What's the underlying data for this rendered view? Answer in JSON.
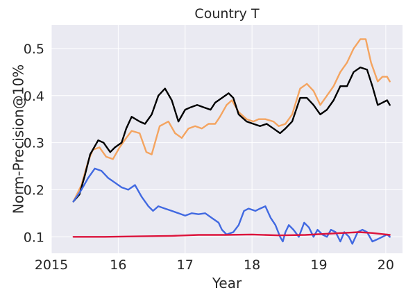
{
  "chart_data": {
    "type": "line",
    "title": "Country T",
    "xlabel": "Year",
    "ylabel": "Norm-Precision@10%",
    "xlim": [
      2015.0,
      2020.25
    ],
    "ylim": [
      0.065,
      0.55
    ],
    "x_ticks": [
      {
        "value": 2015,
        "label": "2015"
      },
      {
        "value": 2016,
        "label": "16"
      },
      {
        "value": 2017,
        "label": "17"
      },
      {
        "value": 2018,
        "label": "18"
      },
      {
        "value": 2019,
        "label": "19"
      },
      {
        "value": 2020,
        "label": "20"
      }
    ],
    "y_ticks": [
      {
        "value": 0.1,
        "label": "0.1"
      },
      {
        "value": 0.2,
        "label": "0.2"
      },
      {
        "value": 0.3,
        "label": "0.3"
      },
      {
        "value": 0.4,
        "label": "0.4"
      },
      {
        "value": 0.5,
        "label": "0.5"
      }
    ],
    "grid": true,
    "background": "#eaeaf2",
    "series": [
      {
        "color": "#f4a460",
        "points": [
          [
            2015.33,
            0.175
          ],
          [
            2015.45,
            0.21
          ],
          [
            2015.55,
            0.26
          ],
          [
            2015.62,
            0.285
          ],
          [
            2015.72,
            0.29
          ],
          [
            2015.82,
            0.27
          ],
          [
            2015.92,
            0.265
          ],
          [
            2016.02,
            0.29
          ],
          [
            2016.12,
            0.31
          ],
          [
            2016.2,
            0.325
          ],
          [
            2016.32,
            0.32
          ],
          [
            2016.42,
            0.28
          ],
          [
            2016.5,
            0.275
          ],
          [
            2016.62,
            0.335
          ],
          [
            2016.75,
            0.345
          ],
          [
            2016.85,
            0.32
          ],
          [
            2016.95,
            0.31
          ],
          [
            2017.05,
            0.33
          ],
          [
            2017.15,
            0.335
          ],
          [
            2017.25,
            0.33
          ],
          [
            2017.35,
            0.34
          ],
          [
            2017.45,
            0.34
          ],
          [
            2017.52,
            0.355
          ],
          [
            2017.62,
            0.38
          ],
          [
            2017.7,
            0.39
          ],
          [
            2017.8,
            0.365
          ],
          [
            2017.92,
            0.35
          ],
          [
            2018.02,
            0.345
          ],
          [
            2018.1,
            0.35
          ],
          [
            2018.2,
            0.35
          ],
          [
            2018.32,
            0.345
          ],
          [
            2018.4,
            0.335
          ],
          [
            2018.5,
            0.34
          ],
          [
            2018.6,
            0.36
          ],
          [
            2018.72,
            0.415
          ],
          [
            2018.82,
            0.425
          ],
          [
            2018.92,
            0.41
          ],
          [
            2019.02,
            0.38
          ],
          [
            2019.12,
            0.4
          ],
          [
            2019.22,
            0.42
          ],
          [
            2019.32,
            0.45
          ],
          [
            2019.42,
            0.47
          ],
          [
            2019.52,
            0.5
          ],
          [
            2019.62,
            0.52
          ],
          [
            2019.7,
            0.52
          ],
          [
            2019.78,
            0.47
          ],
          [
            2019.88,
            0.43
          ],
          [
            2019.95,
            0.44
          ],
          [
            2020.02,
            0.44
          ],
          [
            2020.06,
            0.43
          ]
        ]
      },
      {
        "color": "#000000",
        "points": [
          [
            2015.33,
            0.175
          ],
          [
            2015.42,
            0.19
          ],
          [
            2015.5,
            0.23
          ],
          [
            2015.58,
            0.275
          ],
          [
            2015.7,
            0.305
          ],
          [
            2015.78,
            0.3
          ],
          [
            2015.88,
            0.28
          ],
          [
            2015.95,
            0.29
          ],
          [
            2016.05,
            0.3
          ],
          [
            2016.12,
            0.33
          ],
          [
            2016.2,
            0.355
          ],
          [
            2016.32,
            0.345
          ],
          [
            2016.4,
            0.34
          ],
          [
            2016.5,
            0.36
          ],
          [
            2016.6,
            0.4
          ],
          [
            2016.7,
            0.415
          ],
          [
            2016.8,
            0.39
          ],
          [
            2016.9,
            0.345
          ],
          [
            2017.0,
            0.37
          ],
          [
            2017.08,
            0.375
          ],
          [
            2017.18,
            0.38
          ],
          [
            2017.28,
            0.375
          ],
          [
            2017.38,
            0.37
          ],
          [
            2017.45,
            0.385
          ],
          [
            2017.55,
            0.395
          ],
          [
            2017.65,
            0.405
          ],
          [
            2017.72,
            0.395
          ],
          [
            2017.8,
            0.36
          ],
          [
            2017.92,
            0.345
          ],
          [
            2018.02,
            0.34
          ],
          [
            2018.12,
            0.335
          ],
          [
            2018.22,
            0.34
          ],
          [
            2018.32,
            0.33
          ],
          [
            2018.42,
            0.32
          ],
          [
            2018.5,
            0.33
          ],
          [
            2018.6,
            0.345
          ],
          [
            2018.72,
            0.395
          ],
          [
            2018.82,
            0.395
          ],
          [
            2018.92,
            0.38
          ],
          [
            2019.02,
            0.36
          ],
          [
            2019.12,
            0.37
          ],
          [
            2019.22,
            0.39
          ],
          [
            2019.32,
            0.42
          ],
          [
            2019.42,
            0.42
          ],
          [
            2019.52,
            0.45
          ],
          [
            2019.62,
            0.46
          ],
          [
            2019.72,
            0.455
          ],
          [
            2019.8,
            0.42
          ],
          [
            2019.88,
            0.38
          ],
          [
            2019.95,
            0.385
          ],
          [
            2020.02,
            0.39
          ],
          [
            2020.06,
            0.38
          ]
        ]
      },
      {
        "color": "#4169e1",
        "points": [
          [
            2015.33,
            0.175
          ],
          [
            2015.45,
            0.2
          ],
          [
            2015.55,
            0.225
          ],
          [
            2015.65,
            0.245
          ],
          [
            2015.75,
            0.24
          ],
          [
            2015.85,
            0.225
          ],
          [
            2015.95,
            0.215
          ],
          [
            2016.05,
            0.205
          ],
          [
            2016.15,
            0.2
          ],
          [
            2016.25,
            0.21
          ],
          [
            2016.35,
            0.185
          ],
          [
            2016.45,
            0.165
          ],
          [
            2016.52,
            0.155
          ],
          [
            2016.6,
            0.165
          ],
          [
            2016.7,
            0.16
          ],
          [
            2016.8,
            0.155
          ],
          [
            2016.9,
            0.15
          ],
          [
            2017.0,
            0.145
          ],
          [
            2017.1,
            0.15
          ],
          [
            2017.2,
            0.148
          ],
          [
            2017.3,
            0.15
          ],
          [
            2017.4,
            0.14
          ],
          [
            2017.5,
            0.13
          ],
          [
            2017.55,
            0.115
          ],
          [
            2017.62,
            0.105
          ],
          [
            2017.72,
            0.11
          ],
          [
            2017.8,
            0.125
          ],
          [
            2017.88,
            0.155
          ],
          [
            2017.95,
            0.16
          ],
          [
            2018.05,
            0.155
          ],
          [
            2018.12,
            0.16
          ],
          [
            2018.2,
            0.165
          ],
          [
            2018.28,
            0.14
          ],
          [
            2018.35,
            0.125
          ],
          [
            2018.42,
            0.1
          ],
          [
            2018.46,
            0.09
          ],
          [
            2018.5,
            0.11
          ],
          [
            2018.55,
            0.125
          ],
          [
            2018.62,
            0.115
          ],
          [
            2018.7,
            0.1
          ],
          [
            2018.78,
            0.13
          ],
          [
            2018.85,
            0.12
          ],
          [
            2018.92,
            0.1
          ],
          [
            2018.98,
            0.115
          ],
          [
            2019.05,
            0.105
          ],
          [
            2019.12,
            0.1
          ],
          [
            2019.18,
            0.115
          ],
          [
            2019.25,
            0.11
          ],
          [
            2019.32,
            0.09
          ],
          [
            2019.38,
            0.11
          ],
          [
            2019.45,
            0.1
          ],
          [
            2019.5,
            0.085
          ],
          [
            2019.58,
            0.11
          ],
          [
            2019.65,
            0.115
          ],
          [
            2019.72,
            0.11
          ],
          [
            2019.8,
            0.09
          ],
          [
            2019.88,
            0.095
          ],
          [
            2019.95,
            0.1
          ],
          [
            2020.02,
            0.105
          ],
          [
            2020.06,
            0.1
          ]
        ]
      },
      {
        "color": "#dc143c",
        "points": [
          [
            2015.33,
            0.1
          ],
          [
            2015.8,
            0.1
          ],
          [
            2016.3,
            0.101
          ],
          [
            2016.8,
            0.102
          ],
          [
            2017.2,
            0.104
          ],
          [
            2017.6,
            0.104
          ],
          [
            2018.0,
            0.105
          ],
          [
            2018.4,
            0.103
          ],
          [
            2018.8,
            0.104
          ],
          [
            2019.2,
            0.107
          ],
          [
            2019.6,
            0.11
          ],
          [
            2019.8,
            0.108
          ],
          [
            2020.06,
            0.104
          ]
        ]
      }
    ]
  }
}
